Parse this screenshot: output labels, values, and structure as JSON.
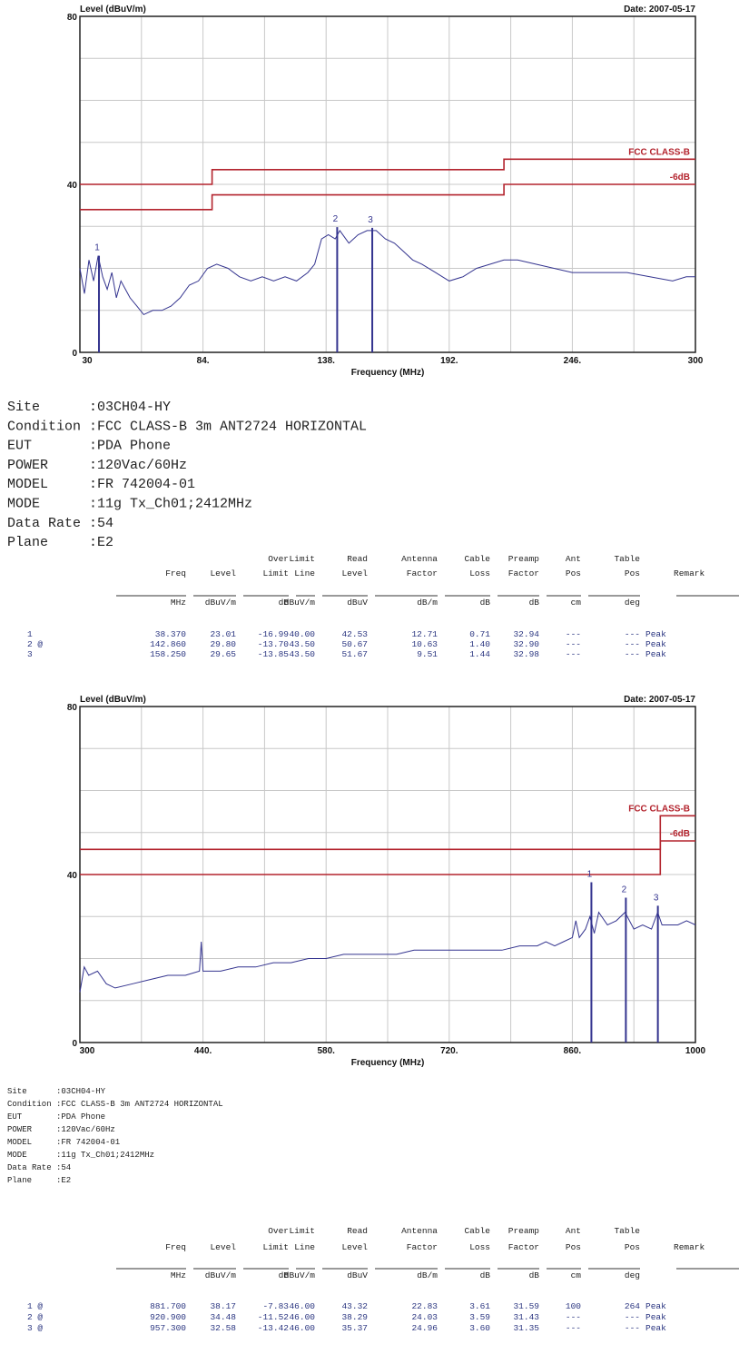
{
  "chart_data": [
    {
      "type": "line",
      "title": "Level (dBuV/m)",
      "date": "Date: 2007-05-17",
      "x_label": "Frequency (MHz)",
      "xlim": [
        30,
        300
      ],
      "ylim": [
        0,
        80
      ],
      "xticks": [
        30,
        {
          "value": 84,
          "label": "84."
        },
        {
          "value": 138,
          "label": "138."
        },
        {
          "value": 192,
          "label": "192."
        },
        {
          "value": 246,
          "label": "246."
        },
        300
      ],
      "yticks": [
        0,
        40,
        80
      ],
      "grid": true,
      "trace": {
        "color": "#34348f",
        "x": [
          30,
          32,
          34,
          36,
          38,
          40,
          42,
          44,
          46,
          48,
          50,
          52,
          55,
          58,
          62,
          66,
          70,
          74,
          78,
          82,
          86,
          90,
          95,
          100,
          105,
          110,
          115,
          120,
          125,
          130,
          133,
          136,
          139,
          142,
          144,
          148,
          152,
          156,
          160,
          164,
          168,
          172,
          176,
          180,
          186,
          192,
          198,
          204,
          210,
          216,
          222,
          230,
          238,
          246,
          254,
          262,
          270,
          280,
          290,
          296,
          300
        ],
        "values": [
          20,
          14,
          22,
          17,
          23,
          18,
          15,
          19,
          13,
          17,
          15,
          13,
          11,
          9,
          10,
          10,
          11,
          13,
          16,
          17,
          20,
          21,
          20,
          18,
          17,
          18,
          17,
          18,
          17,
          19,
          21,
          27,
          28,
          27,
          29,
          26,
          28,
          29,
          29,
          27,
          26,
          24,
          22,
          21,
          19,
          17,
          18,
          20,
          21,
          22,
          22,
          21,
          20,
          19,
          19,
          19,
          19,
          18,
          17,
          18,
          18
        ]
      },
      "limits": [
        {
          "name": "FCC CLASS-B",
          "color": "#b3232d",
          "x": [
            30,
            88,
            88,
            216,
            216,
            300
          ],
          "values": [
            40,
            40,
            43.5,
            43.5,
            46,
            46
          ]
        },
        {
          "name": "-6dB",
          "color": "#b3232d",
          "x": [
            30,
            88,
            88,
            216,
            216,
            300
          ],
          "values": [
            34,
            34,
            37.5,
            37.5,
            40,
            40
          ]
        }
      ],
      "markers": {
        "color": "#34348f",
        "labels": [
          "1",
          "2",
          "3"
        ],
        "x": [
          38.37,
          142.86,
          158.25
        ],
        "values": [
          23.01,
          29.8,
          29.65
        ]
      }
    },
    {
      "type": "line",
      "title": "Level (dBuV/m)",
      "date": "Date: 2007-05-17",
      "x_label": "Frequency (MHz)",
      "xlim": [
        300,
        1000
      ],
      "ylim": [
        0,
        80
      ],
      "xticks": [
        300,
        {
          "value": 440,
          "label": "440."
        },
        {
          "value": 580,
          "label": "580."
        },
        {
          "value": 720,
          "label": "720."
        },
        {
          "value": 860,
          "label": "860."
        },
        1000
      ],
      "yticks": [
        0,
        40,
        80
      ],
      "grid": true,
      "trace": {
        "color": "#34348f",
        "x": [
          300,
          305,
          310,
          320,
          330,
          340,
          360,
          380,
          400,
          420,
          436,
          438,
          440,
          460,
          480,
          500,
          520,
          540,
          560,
          580,
          600,
          620,
          640,
          660,
          680,
          700,
          720,
          740,
          760,
          780,
          800,
          820,
          830,
          840,
          850,
          860,
          864,
          868,
          875,
          880,
          885,
          890,
          900,
          910,
          920,
          930,
          940,
          950,
          957,
          962,
          970,
          980,
          990,
          1000
        ],
        "values": [
          12,
          18,
          16,
          17,
          14,
          13,
          14,
          15,
          16,
          16,
          17,
          24,
          17,
          17,
          18,
          18,
          19,
          19,
          20,
          20,
          21,
          21,
          21,
          21,
          22,
          22,
          22,
          22,
          22,
          22,
          23,
          23,
          24,
          23,
          24,
          25,
          29,
          25,
          27,
          30,
          26,
          31,
          28,
          29,
          31,
          27,
          28,
          27,
          31,
          28,
          28,
          28,
          29,
          28
        ]
      },
      "limits": [
        {
          "name": "FCC CLASS-B",
          "color": "#b3232d",
          "x": [
            300,
            960,
            960,
            1000
          ],
          "values": [
            46,
            46,
            54,
            54
          ]
        },
        {
          "name": "-6dB",
          "color": "#b3232d",
          "x": [
            300,
            960,
            960,
            1000
          ],
          "values": [
            40,
            40,
            48,
            48
          ]
        }
      ],
      "markers": {
        "color": "#34348f",
        "labels": [
          "1",
          "2",
          "3"
        ],
        "x": [
          881.7,
          920.9,
          957.3
        ],
        "values": [
          38.17,
          34.48,
          32.58
        ]
      }
    }
  ],
  "reports": [
    {
      "info": [
        {
          "label": "Site",
          "value": ":03CH04-HY"
        },
        {
          "label": "Condition",
          "value": ":FCC CLASS-B 3m ANT2724 HORIZONTAL"
        },
        {
          "label": "EUT",
          "value": ":PDA Phone"
        },
        {
          "label": "POWER",
          "value": ":120Vac/60Hz"
        },
        {
          "label": "MODEL",
          "value": ":FR 742004-01"
        },
        {
          "label": "MODE",
          "value": ":11g Tx_Ch01;2412MHz"
        },
        {
          "label": "Data Rate",
          "value": ":54"
        },
        {
          "label": "Plane",
          "value": ":E2"
        }
      ],
      "table": {
        "header_top": [
          null,
          null,
          null,
          "Over",
          "Limit",
          "Read",
          "Antenna",
          "Cable",
          "Preamp",
          "Ant",
          "Table",
          null
        ],
        "header_bottom": [
          null,
          "Freq",
          "Level",
          "Limit",
          "Line",
          "Level",
          "Factor",
          "Loss",
          "Factor",
          "Pos",
          "Pos",
          "Remark"
        ],
        "units": [
          null,
          "MHz",
          "dBuV/m",
          "dB",
          "dBuV/m",
          "dBuV",
          "dB/m",
          "dB",
          "dB",
          "cm",
          "deg",
          null
        ],
        "rows": [
          [
            "1",
            "38.370",
            "23.01",
            "-16.99",
            "40.00",
            "42.53",
            "12.71",
            "0.71",
            "32.94",
            "---",
            "---",
            "Peak"
          ],
          [
            "2 @",
            "142.860",
            "29.80",
            "-13.70",
            "43.50",
            "50.67",
            "10.63",
            "1.40",
            "32.90",
            "---",
            "---",
            "Peak"
          ],
          [
            "3",
            "158.250",
            "29.65",
            "-13.85",
            "43.50",
            "51.67",
            "9.51",
            "1.44",
            "32.98",
            "---",
            "---",
            "Peak"
          ]
        ]
      }
    },
    {
      "info": [
        {
          "label": "Site",
          "value": ":03CH04-HY"
        },
        {
          "label": "Condition",
          "value": ":FCC CLASS-B 3m ANT2724 HORIZONTAL"
        },
        {
          "label": "EUT",
          "value": ":PDA Phone"
        },
        {
          "label": "POWER",
          "value": ":120Vac/60Hz"
        },
        {
          "label": "MODEL",
          "value": ":FR 742004-01"
        },
        {
          "label": "MODE",
          "value": ":11g Tx_Ch01;2412MHz"
        },
        {
          "label": "Data Rate",
          "value": ":54"
        },
        {
          "label": "Plane",
          "value": ":E2"
        }
      ],
      "table": {
        "header_top": [
          null,
          null,
          null,
          "Over",
          "Limit",
          "Read",
          "Antenna",
          "Cable",
          "Preamp",
          "Ant",
          "Table",
          null
        ],
        "header_bottom": [
          null,
          "Freq",
          "Level",
          "Limit",
          "Line",
          "Level",
          "Factor",
          "Loss",
          "Factor",
          "Pos",
          "Pos",
          "Remark"
        ],
        "units": [
          null,
          "MHz",
          "dBuV/m",
          "dB",
          "dBuV/m",
          "dBuV",
          "dB/m",
          "dB",
          "dB",
          "cm",
          "deg",
          null
        ],
        "rows": [
          [
            "1 @",
            "881.700",
            "38.17",
            "-7.83",
            "46.00",
            "43.32",
            "22.83",
            "3.61",
            "31.59",
            "100",
            "264",
            "Peak"
          ],
          [
            "2 @",
            "920.900",
            "34.48",
            "-11.52",
            "46.00",
            "38.29",
            "24.03",
            "3.59",
            "31.43",
            "---",
            "---",
            "Peak"
          ],
          [
            "3 @",
            "957.300",
            "32.58",
            "-13.42",
            "46.00",
            "35.37",
            "24.96",
            "3.60",
            "31.35",
            "---",
            "---",
            "Peak"
          ]
        ]
      }
    }
  ]
}
